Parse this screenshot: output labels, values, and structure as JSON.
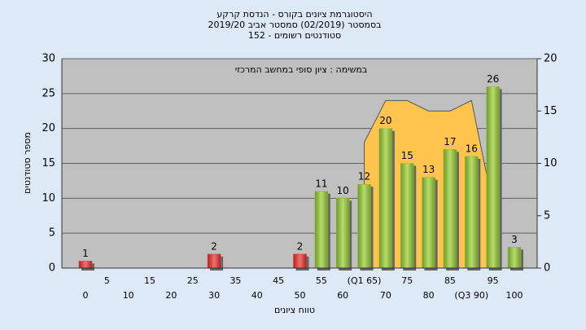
{
  "chart_data": {
    "type": "bar",
    "title": [
      "היסטוגרמת ציונים בקורס - הנדסת קרקע",
      "בסמסטר (02/2019) סמסטר אביב 2019/20",
      "סטודנטים רשומים - 152"
    ],
    "annotation": "במשימה : ציון סופי במחשב המרכזי",
    "x_label": "טווח ציונים",
    "y_label": "מספר סטודנטים",
    "categories": [
      "0",
      "5",
      "10",
      "15",
      "20",
      "25",
      "30",
      "35",
      "40",
      "45",
      "50",
      "55",
      "60",
      "(Q1 65)",
      "70",
      "75",
      "80",
      "85",
      "(Q3 90)",
      "95",
      "100"
    ],
    "values": [
      1,
      0,
      0,
      0,
      0,
      0,
      2,
      0,
      0,
      0,
      2,
      11,
      10,
      12,
      20,
      15,
      13,
      17,
      16,
      26,
      3
    ],
    "colors": [
      "#d63a3a",
      "#d63a3a",
      "#d63a3a",
      "#d63a3a",
      "#d63a3a",
      "#d63a3a",
      "#d63a3a",
      "#d63a3a",
      "#d63a3a",
      "#d63a3a",
      "#d63a3a",
      "#8dbb3c",
      "#8dbb3c",
      "#8dbb3c",
      "#8dbb3c",
      "#8dbb3c",
      "#8dbb3c",
      "#8dbb3c",
      "#8dbb3c",
      "#8dbb3c",
      "#8dbb3c"
    ],
    "area": {
      "axis": "y2",
      "color": "#ffc44d",
      "values": [
        null,
        null,
        null,
        null,
        null,
        null,
        null,
        null,
        null,
        null,
        null,
        null,
        null,
        12,
        16,
        16,
        15,
        15,
        16,
        6,
        null
      ]
    },
    "ylim": [
      0,
      30
    ],
    "yticks": [
      0,
      5,
      10,
      15,
      20,
      25,
      30
    ],
    "y2lim": [
      0,
      20
    ],
    "y2ticks": [
      0,
      5,
      10,
      15,
      20
    ],
    "grid": true
  }
}
